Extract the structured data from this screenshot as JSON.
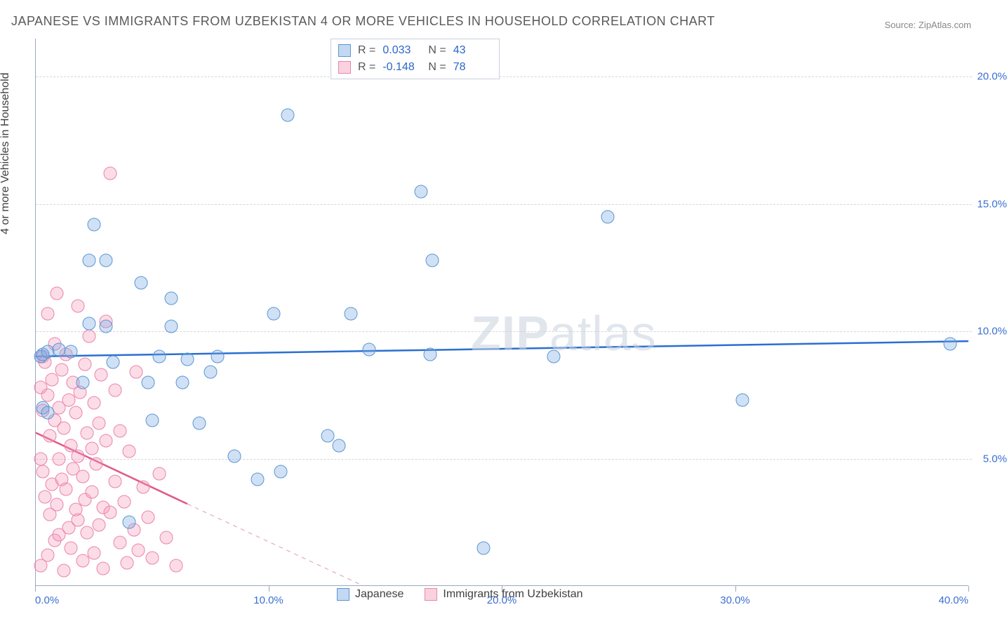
{
  "title": "JAPANESE VS IMMIGRANTS FROM UZBEKISTAN 4 OR MORE VEHICLES IN HOUSEHOLD CORRELATION CHART",
  "source": "Source: ZipAtlas.com",
  "ylabel": "4 or more Vehicles in Household",
  "watermark_bold": "ZIP",
  "watermark_rest": "atlas",
  "chart": {
    "type": "scatter",
    "xlim": [
      0,
      40
    ],
    "ylim": [
      0,
      21.5
    ],
    "xticks": [
      0,
      10,
      20,
      30,
      40
    ],
    "xtick_labels": [
      "0.0%",
      "10.0%",
      "20.0%",
      "30.0%",
      "40.0%"
    ],
    "yticks": [
      5,
      10,
      15,
      20
    ],
    "ytick_labels": [
      "5.0%",
      "10.0%",
      "15.0%",
      "20.0%"
    ],
    "marker_size": 19,
    "background_color": "#ffffff",
    "grid_color": "#d6d6d6",
    "axis_color": "#9aa8be",
    "text_color": "#404040",
    "tick_label_color": "#3b6fd1",
    "tick_label_fontsize": 15,
    "title_fontsize": 18,
    "ylabel_fontsize": 16
  },
  "series": {
    "blue": {
      "label": "Japanese",
      "fill": "rgba(120,170,225,0.35)",
      "stroke": "#5a96d4",
      "corr_R": "0.033",
      "corr_N": "43",
      "trend": {
        "x1": 0,
        "y1": 9.0,
        "x2": 40,
        "y2": 9.6,
        "color": "#2a6fd0",
        "width": 2.5,
        "dash": "none"
      },
      "points": [
        [
          0.2,
          9.0
        ],
        [
          0.3,
          7.0
        ],
        [
          0.3,
          9.1
        ],
        [
          0.5,
          9.2
        ],
        [
          0.5,
          6.8
        ],
        [
          1.0,
          9.3
        ],
        [
          1.5,
          9.2
        ],
        [
          2.0,
          8.0
        ],
        [
          2.3,
          10.3
        ],
        [
          2.3,
          12.8
        ],
        [
          2.5,
          14.2
        ],
        [
          3.0,
          12.8
        ],
        [
          3.0,
          10.2
        ],
        [
          3.3,
          8.8
        ],
        [
          4.0,
          2.5
        ],
        [
          4.5,
          11.9
        ],
        [
          4.8,
          8.0
        ],
        [
          5.0,
          6.5
        ],
        [
          5.3,
          9.0
        ],
        [
          5.8,
          11.3
        ],
        [
          5.8,
          10.2
        ],
        [
          6.3,
          8.0
        ],
        [
          6.5,
          8.9
        ],
        [
          7.0,
          6.4
        ],
        [
          7.5,
          8.4
        ],
        [
          7.8,
          9.0
        ],
        [
          8.5,
          5.1
        ],
        [
          9.5,
          4.2
        ],
        [
          10.2,
          10.7
        ],
        [
          10.5,
          4.5
        ],
        [
          10.8,
          18.5
        ],
        [
          12.5,
          5.9
        ],
        [
          13.0,
          5.5
        ],
        [
          13.5,
          10.7
        ],
        [
          14.3,
          9.3
        ],
        [
          16.5,
          15.5
        ],
        [
          16.9,
          9.1
        ],
        [
          17.0,
          12.8
        ],
        [
          19.2,
          1.5
        ],
        [
          22.2,
          9.0
        ],
        [
          24.5,
          14.5
        ],
        [
          30.3,
          7.3
        ],
        [
          39.2,
          9.5
        ]
      ]
    },
    "pink": {
      "label": "Immigrants from Uzbekistan",
      "fill": "rgba(245,155,185,0.35)",
      "stroke": "#e984aa",
      "corr_R": "-0.148",
      "corr_N": "78",
      "trend_solid": {
        "x1": 0,
        "y1": 6.0,
        "x2": 6.5,
        "y2": 3.2,
        "color": "#e05a8a",
        "width": 2.5
      },
      "trend_dash": {
        "x1": 6.5,
        "y1": 3.2,
        "x2": 14.0,
        "y2": 0.0,
        "color": "#e8a8bd",
        "width": 1.2
      },
      "points": [
        [
          0.2,
          0.8
        ],
        [
          0.2,
          5.0
        ],
        [
          0.2,
          7.8
        ],
        [
          0.3,
          4.5
        ],
        [
          0.3,
          9.0
        ],
        [
          0.3,
          6.9
        ],
        [
          0.4,
          8.8
        ],
        [
          0.4,
          3.5
        ],
        [
          0.5,
          1.2
        ],
        [
          0.5,
          7.5
        ],
        [
          0.5,
          10.7
        ],
        [
          0.6,
          5.9
        ],
        [
          0.6,
          2.8
        ],
        [
          0.7,
          8.1
        ],
        [
          0.7,
          4.0
        ],
        [
          0.8,
          9.5
        ],
        [
          0.8,
          1.8
        ],
        [
          0.8,
          6.5
        ],
        [
          0.9,
          11.5
        ],
        [
          0.9,
          3.2
        ],
        [
          1.0,
          7.0
        ],
        [
          1.0,
          5.0
        ],
        [
          1.0,
          2.0
        ],
        [
          1.1,
          8.5
        ],
        [
          1.1,
          4.2
        ],
        [
          1.2,
          0.6
        ],
        [
          1.2,
          6.2
        ],
        [
          1.3,
          3.8
        ],
        [
          1.3,
          9.1
        ],
        [
          1.4,
          2.3
        ],
        [
          1.4,
          7.3
        ],
        [
          1.5,
          5.5
        ],
        [
          1.5,
          1.5
        ],
        [
          1.6,
          4.6
        ],
        [
          1.6,
          8.0
        ],
        [
          1.7,
          3.0
        ],
        [
          1.7,
          6.8
        ],
        [
          1.8,
          11.0
        ],
        [
          1.8,
          2.6
        ],
        [
          1.8,
          5.1
        ],
        [
          1.9,
          7.6
        ],
        [
          2.0,
          4.3
        ],
        [
          2.0,
          1.0
        ],
        [
          2.1,
          8.7
        ],
        [
          2.1,
          3.4
        ],
        [
          2.2,
          6.0
        ],
        [
          2.2,
          2.1
        ],
        [
          2.3,
          9.8
        ],
        [
          2.4,
          5.4
        ],
        [
          2.4,
          3.7
        ],
        [
          2.5,
          7.2
        ],
        [
          2.5,
          1.3
        ],
        [
          2.6,
          4.8
        ],
        [
          2.7,
          2.4
        ],
        [
          2.7,
          6.4
        ],
        [
          2.8,
          8.3
        ],
        [
          2.9,
          3.1
        ],
        [
          2.9,
          0.7
        ],
        [
          3.0,
          5.7
        ],
        [
          3.0,
          10.4
        ],
        [
          3.2,
          2.9
        ],
        [
          3.2,
          16.2
        ],
        [
          3.4,
          4.1
        ],
        [
          3.4,
          7.7
        ],
        [
          3.6,
          1.7
        ],
        [
          3.6,
          6.1
        ],
        [
          3.8,
          3.3
        ],
        [
          3.9,
          0.9
        ],
        [
          4.0,
          5.3
        ],
        [
          4.2,
          2.2
        ],
        [
          4.3,
          8.4
        ],
        [
          4.4,
          1.4
        ],
        [
          4.6,
          3.9
        ],
        [
          4.8,
          2.7
        ],
        [
          5.0,
          1.1
        ],
        [
          5.3,
          4.4
        ],
        [
          5.6,
          1.9
        ],
        [
          6.0,
          0.8
        ]
      ]
    }
  },
  "corr_box_labels": {
    "R": "R  =",
    "N": "N  ="
  },
  "legend": {
    "blue_label": "Japanese",
    "pink_label": "Immigrants from Uzbekistan"
  }
}
